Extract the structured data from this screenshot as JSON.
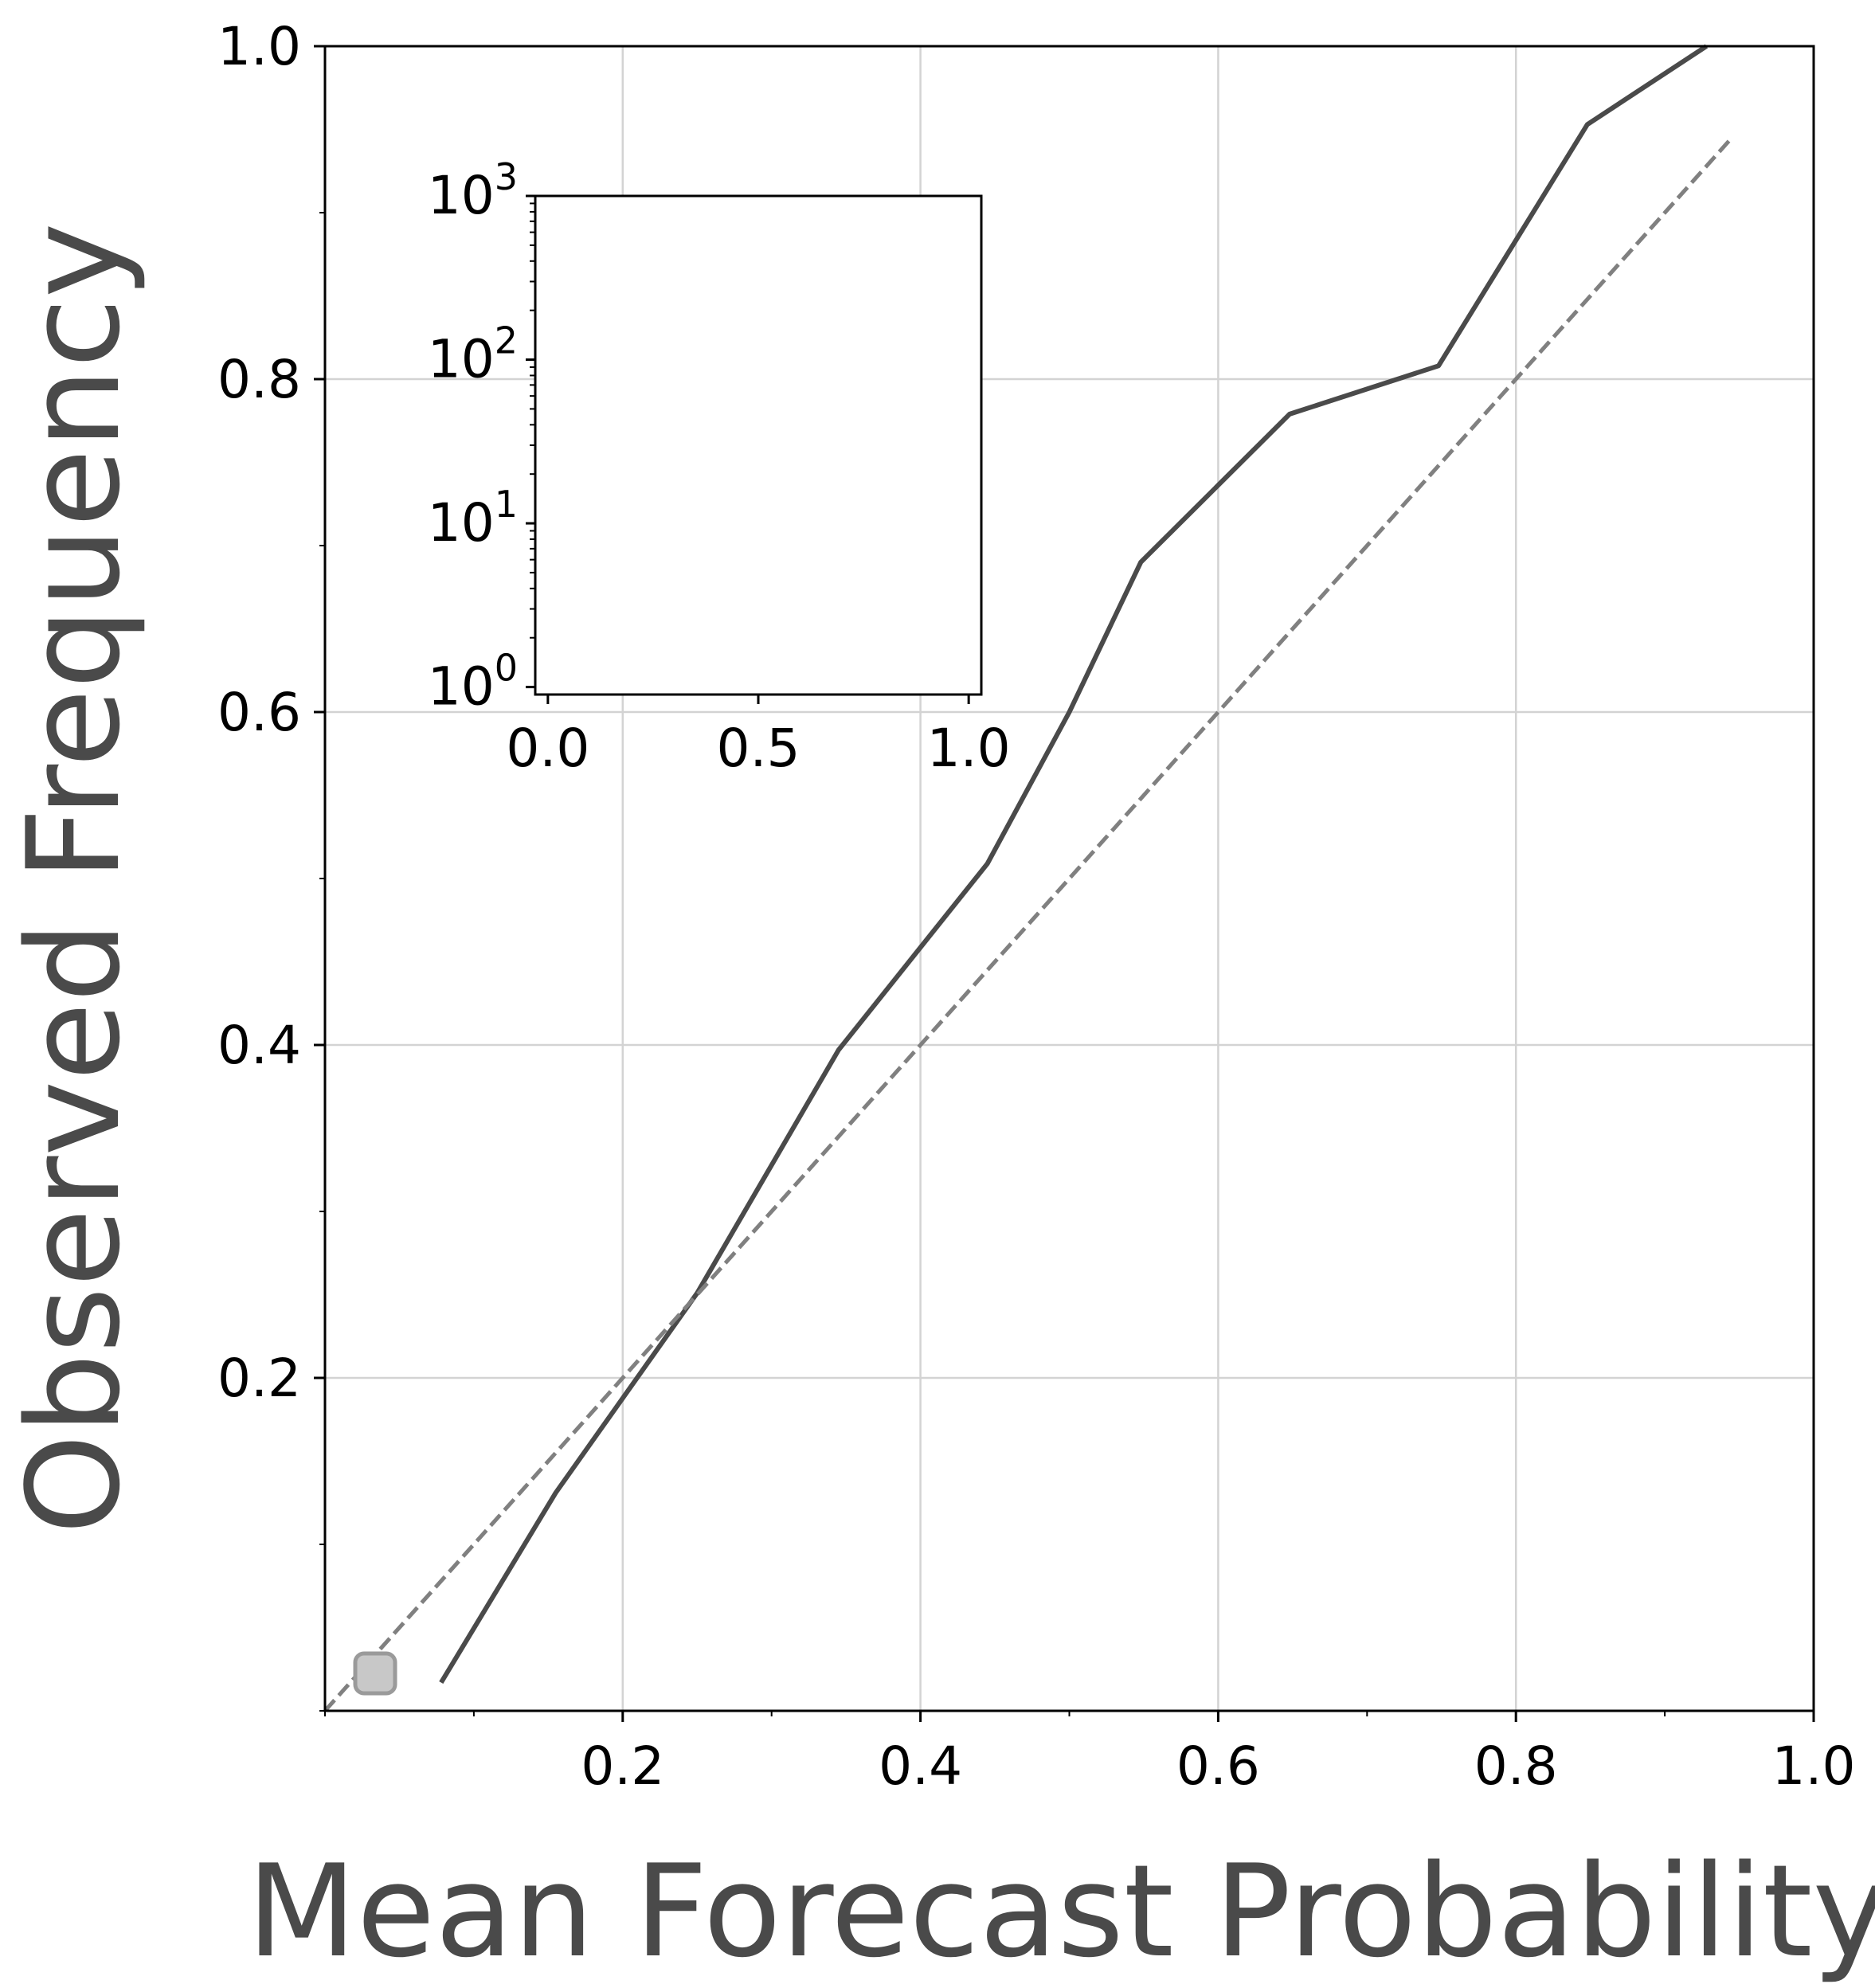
{
  "chart_data": [
    {
      "type": "line",
      "xlabel": "Mean Forecast Probability",
      "ylabel": "Observed Frequency",
      "xlim": [
        0.0,
        1.0
      ],
      "ylim": [
        0.0,
        1.0
      ],
      "xticks": [
        0.2,
        0.4,
        0.6,
        0.8,
        1.0
      ],
      "xtick_labels": [
        "0.2",
        "0.4",
        "0.6",
        "0.8",
        "1.0"
      ],
      "yticks": [
        0.2,
        0.4,
        0.6,
        0.8,
        1.0
      ],
      "ytick_labels": [
        "0.2",
        "0.4",
        "0.6",
        "0.8",
        "1.0"
      ],
      "grid": true,
      "legend": "lower-left (empty marker only)",
      "series": [
        {
          "style": "solid",
          "color": "#4a4a4a",
          "x": [
            0.078,
            0.155,
            0.25,
            0.345,
            0.445,
            0.5,
            0.548,
            0.648,
            0.748,
            0.848,
            0.928
          ],
          "y": [
            0.017,
            0.131,
            0.251,
            0.397,
            0.509,
            0.6,
            0.69,
            0.779,
            0.808,
            0.953,
            1.0
          ]
        },
        {
          "style": "dashed",
          "color": "#808080",
          "x": [
            0.0,
            0.945
          ],
          "y": [
            0.0,
            0.945
          ]
        }
      ]
    },
    {
      "type": "bar",
      "inset": true,
      "xlim": [
        -0.03,
        1.03
      ],
      "ylim": [
        0.9,
        1000
      ],
      "yscale": "log",
      "xticks": [
        0.0,
        0.5,
        1.0
      ],
      "xtick_labels": [
        "0.0",
        "0.5",
        "1.0"
      ],
      "yticks": [
        1,
        10,
        100,
        1000
      ],
      "ytick_labels": [
        {
          "base": "10",
          "exp": "0"
        },
        {
          "base": "10",
          "exp": "1"
        },
        {
          "base": "10",
          "exp": "2"
        },
        {
          "base": "10",
          "exp": "3"
        }
      ],
      "values": []
    }
  ]
}
